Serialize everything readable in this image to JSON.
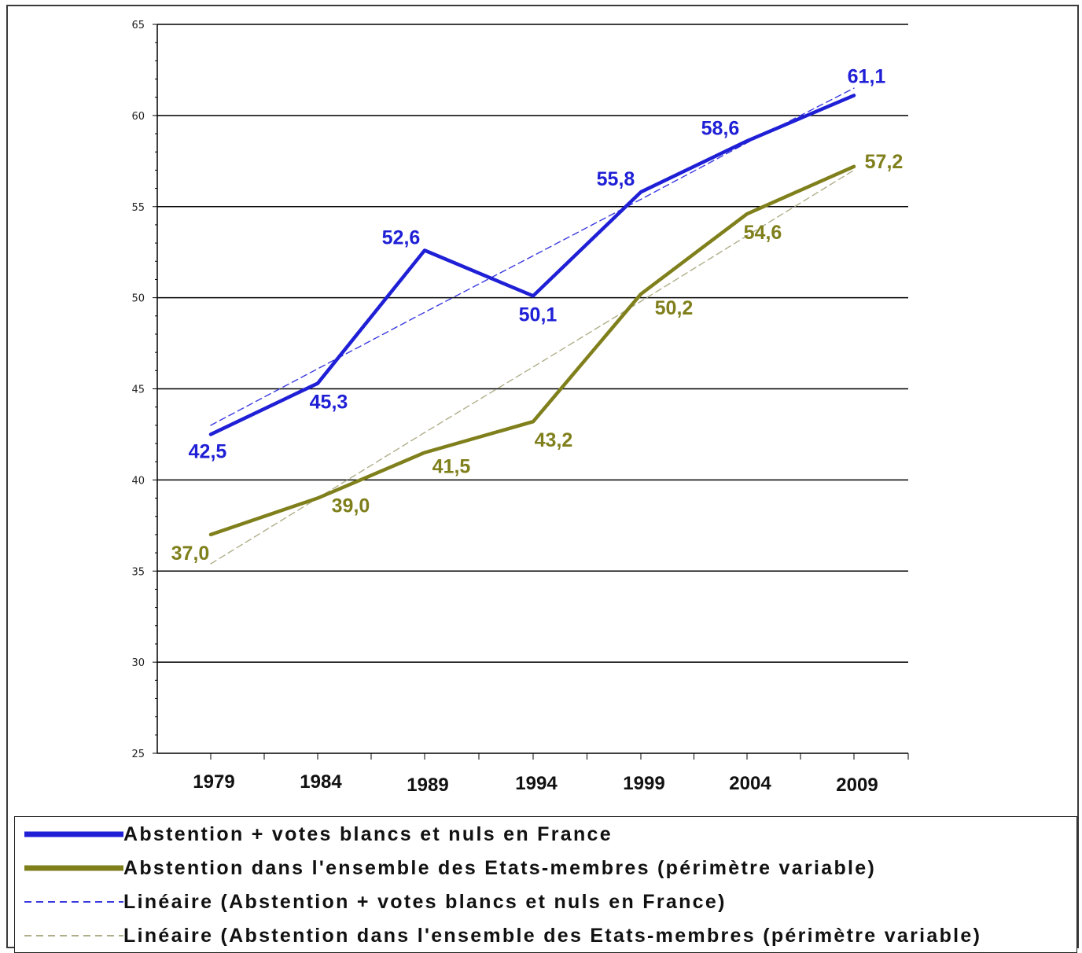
{
  "chart_data": {
    "type": "line",
    "categories": [
      "1979",
      "1984",
      "1989",
      "1994",
      "1999",
      "2004",
      "2009"
    ],
    "ylim": [
      25,
      65
    ],
    "yticks": [
      25,
      30,
      35,
      40,
      45,
      50,
      55,
      60,
      65
    ],
    "ytick_labels": [
      "25",
      "30",
      "35",
      "40",
      "45",
      "50",
      "55",
      "60",
      "65"
    ],
    "grid": true,
    "legend_position": "bottom",
    "series": [
      {
        "name": "Abstention + votes blancs et nuls en France",
        "values": [
          42.5,
          45.3,
          52.6,
          50.1,
          55.8,
          58.6,
          61.1
        ],
        "labels": [
          "42,5",
          "45,3",
          "52,6",
          "50,1",
          "55,8",
          "58,6",
          "61,1"
        ],
        "color": "#1f1fd6",
        "style": "solid"
      },
      {
        "name": "Abstention dans l'ensemble des Etats-membres (périmètre variable)",
        "values": [
          37.0,
          39.0,
          41.5,
          43.2,
          50.2,
          54.6,
          57.2
        ],
        "labels": [
          "37,0",
          "39,0",
          "41,5",
          "43,2",
          "50,2",
          "54,6",
          "57,2"
        ],
        "color": "#7f7f1c",
        "style": "solid"
      },
      {
        "name": "Linéaire (Abstention + votes blancs et nuls en France)",
        "values": [
          43.0,
          46.1,
          49.2,
          52.3,
          55.4,
          58.5,
          61.5
        ],
        "color": "#3a3ae0",
        "style": "dashed"
      },
      {
        "name": "Linéaire (Abstention dans l'ensemble des Etats-membres (périmètre variable)",
        "values": [
          35.4,
          39.0,
          42.6,
          46.2,
          49.8,
          53.4,
          57.0
        ],
        "color": "#b0ae8a",
        "style": "dashed"
      }
    ]
  },
  "legend": {
    "items": [
      "Abstention + votes blancs et nuls en France",
      "Abstention dans l'ensemble des Etats-membres (périmètre variable)",
      "Linéaire (Abstention + votes blancs et nuls en France)",
      "Linéaire (Abstention dans l'ensemble des Etats-membres (périmètre variable)"
    ]
  }
}
